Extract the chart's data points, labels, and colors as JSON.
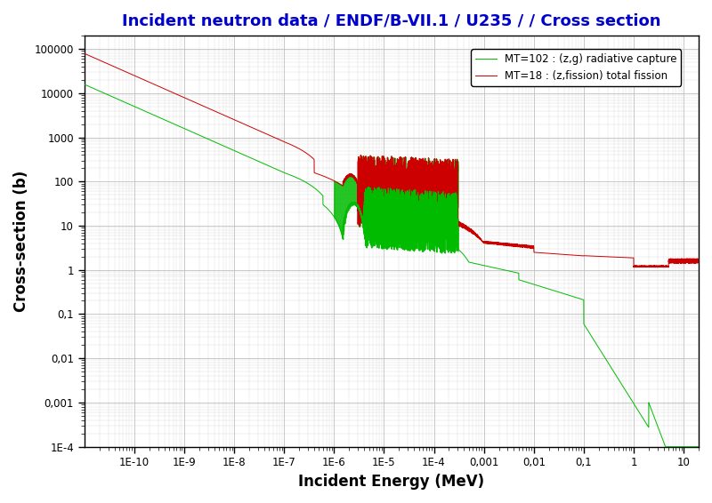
{
  "title": "Incident neutron data / ENDF/B-VII.1 / U235 / / Cross section",
  "xlabel": "Incident Energy (MeV)",
  "ylabel": "Cross-section (b)",
  "title_color": "#0000CC",
  "title_fontsize": 13,
  "xlabel_fontsize": 12,
  "ylabel_fontsize": 12,
  "background_color": "#FFFFFF",
  "grid_color": "#BBBBBB",
  "legend_mt102_label": "MT=102 : (z,g) radiative capture",
  "legend_mt18_label": "MT=18 : (z,fission) total fission",
  "color_mt102": "#00BB00",
  "color_mt18": "#CC0000",
  "xtick_labels": [
    "1E-10",
    "1E-9",
    "1E-8",
    "1E-7",
    "1E-6",
    "1E-5",
    "1E-4",
    "0,001",
    "0,01",
    "0,1",
    "1",
    "10"
  ],
  "xtick_values": [
    1e-10,
    1e-09,
    1e-08,
    1e-07,
    1e-06,
    1e-05,
    0.0001,
    0.001,
    0.01,
    0.1,
    1.0,
    10.0
  ],
  "ytick_labels": [
    "1E-4",
    "0,001",
    "0,01",
    "0,1",
    "1",
    "10",
    "100",
    "1000",
    "10000",
    "100000"
  ],
  "ytick_values": [
    0.0001,
    0.001,
    0.01,
    0.1,
    1.0,
    10.0,
    100.0,
    1000.0,
    10000.0,
    100000.0
  ]
}
